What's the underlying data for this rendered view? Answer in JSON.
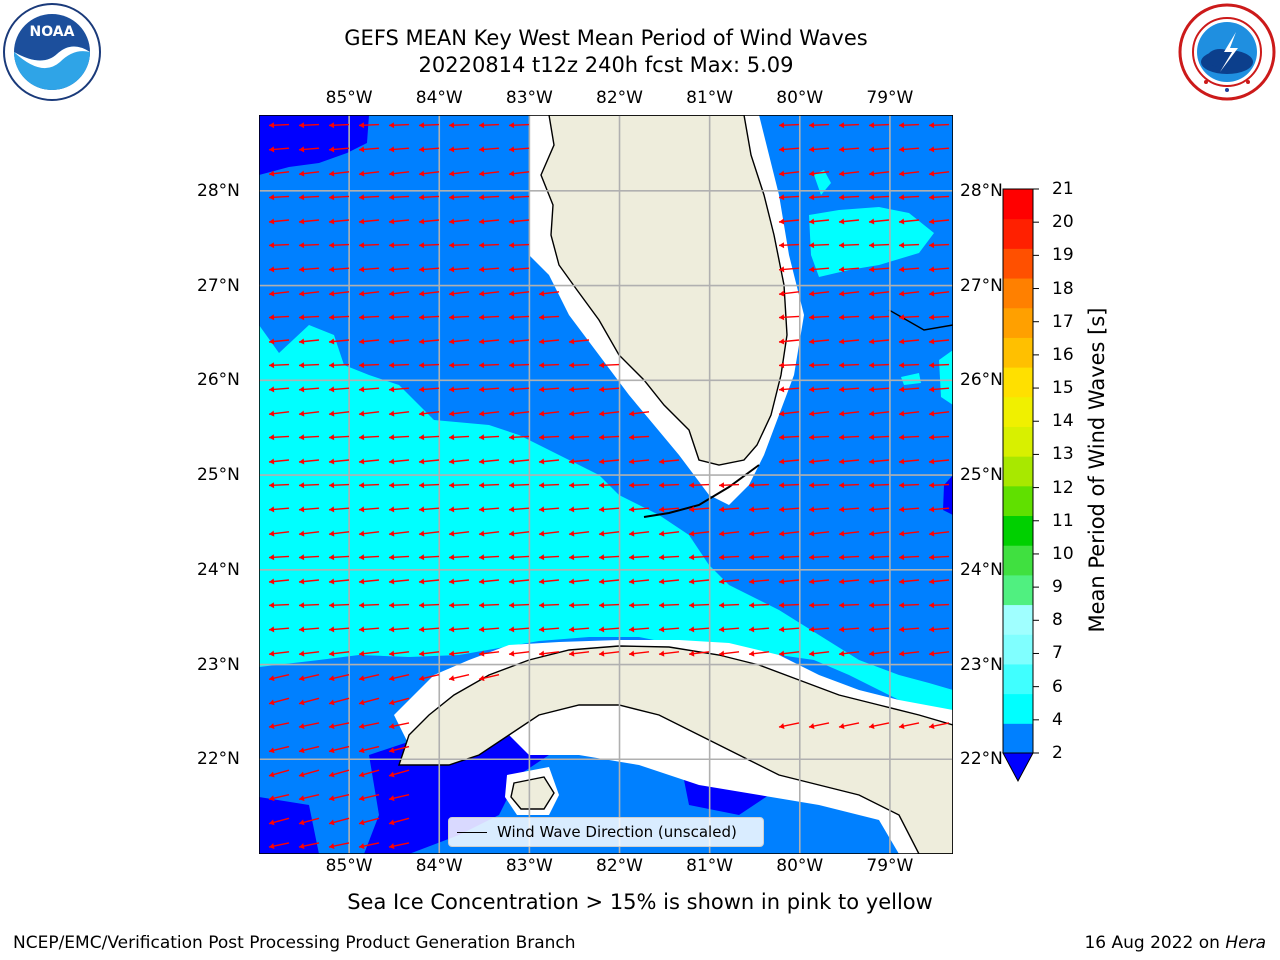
{
  "title": {
    "line1": "GEFS MEAN Key West Mean Period of Wind Waves",
    "line2": "20220814 t12z 240h fcst   Max: 5.09"
  },
  "logos": {
    "noaa": {
      "text": "NOAA",
      "ring_text": "NATIONAL OCEANIC AND ATMOSPHERIC ADMINISTRATION · U.S. DEPARTMENT OF COMMERCE"
    },
    "nws": {
      "ring_text": "NATIONAL WEATHER SERVICE"
    }
  },
  "map": {
    "lon_labels": [
      "85°W",
      "84°W",
      "83°W",
      "82°W",
      "81°W",
      "80°W",
      "79°W"
    ],
    "lat_labels": [
      "28°N",
      "27°N",
      "26°N",
      "25°N",
      "24°N",
      "23°N",
      "22°N"
    ],
    "lon_range": [
      -86.0,
      -78.3
    ],
    "lat_range": [
      21.0,
      28.8
    ],
    "wave_direction": "westward (from east)",
    "colors": {
      "land": "#eeeddc",
      "ocean_2_4": "#0080ff",
      "ocean_4_6": "#00ffff",
      "ocean_below_2": "#0000ff",
      "no_data": "#ffffff",
      "arrows": "#ff0000",
      "grid": "#b0b0b0"
    },
    "legend_label": "Wind Wave Direction (unscaled)"
  },
  "colorbar": {
    "label": "Mean Period of Wind Waves [s]",
    "ticks": [
      "21",
      "20",
      "19",
      "18",
      "17",
      "16",
      "15",
      "14",
      "13",
      "12",
      "11",
      "10",
      "9",
      "8",
      "7",
      "6",
      "4",
      "2"
    ],
    "colors_low_to_high": [
      "#0080ff",
      "#00ffff",
      "#40ffff",
      "#80ffff",
      "#a0ffff",
      "#50f080",
      "#40e040",
      "#00d000",
      "#60e000",
      "#a8e800",
      "#d8f000",
      "#f0f000",
      "#ffe000",
      "#ffc000",
      "#ffa000",
      "#ff8000",
      "#ff5000",
      "#ff2000",
      "#ff0000"
    ],
    "under_color": "#0000ff"
  },
  "caption": "Sea Ice Concentration > 15% is shown in pink to yellow",
  "footer": {
    "left": "NCEP/EMC/Verification Post Processing Product Generation Branch",
    "right_date": "16 Aug 2022 on",
    "right_host": "Hera"
  }
}
